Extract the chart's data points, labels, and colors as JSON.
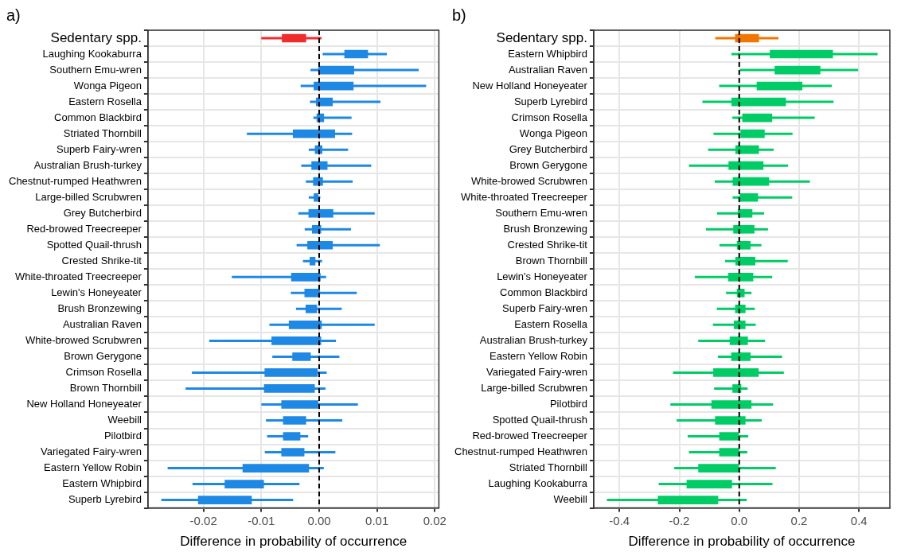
{
  "chart_data": [
    {
      "type": "bar",
      "title": "a)",
      "orientation": "horizontal",
      "xlabel": "Difference in probability of occurrence",
      "grid": true,
      "categories": [
        "Sedentary spp.",
        "Laughing Kookaburra",
        "Southern Emu-wren",
        "Wonga Pigeon",
        "Eastern Rosella",
        "Common Blackbird",
        "Striated Thornbill",
        "Superb Fairy-wren",
        "Australian Brush-turkey",
        "Chestnut-rumped Heathwren",
        "Large-billed Scrubwren",
        "Grey Butcherbird",
        "Red-browed Treecreeper",
        "Spotted Quail-thrush",
        "Crested Shrike-tit",
        "White-throated Treecreeper",
        "Lewin's Honeyeater",
        "Brush Bronzewing",
        "Australian Raven",
        "White-browed Scrubwren",
        "Brown Gerygone",
        "Crimson Rosella",
        "Brown Thornbill",
        "New Holland Honeyeater",
        "Weebill",
        "Pilotbird",
        "Variegated Fairy-wren",
        "Eastern Yellow Robin",
        "Eastern Whipbird",
        "Superb Lyrebird"
      ],
      "base": [
        -0.0064,
        0.0044,
        -0.0001,
        -0.0009,
        -0.0005,
        -0.0004,
        -0.0045,
        -0.0007,
        -0.0013,
        -0.001,
        -0.0009,
        -0.0018,
        -0.0012,
        -0.002,
        -0.0016,
        -0.0048,
        -0.0025,
        -0.0023,
        -0.0052,
        -0.0082,
        -0.0046,
        -0.0094,
        -0.0095,
        -0.0065,
        -0.0062,
        -0.0062,
        -0.0065,
        -0.0132,
        -0.0163,
        -0.0209
      ],
      "values": [
        0.0041,
        0.004,
        0.0061,
        0.0068,
        0.0028,
        0.0012,
        0.0072,
        0.0012,
        0.0027,
        0.0016,
        0.0007,
        0.0042,
        0.0015,
        0.0043,
        0.0009,
        0.005,
        0.0026,
        0.0019,
        0.0056,
        0.0085,
        0.0031,
        0.0091,
        0.0087,
        0.0063,
        0.0039,
        0.0029,
        0.0039,
        0.0114,
        0.0067,
        0.0092
      ],
      "errors": [
        [
          -0.01,
          0.0004
        ],
        [
          0.0006,
          0.0117
        ],
        [
          -0.0015,
          0.0172
        ],
        [
          -0.0032,
          0.0185
        ],
        [
          -0.0016,
          0.0106
        ],
        [
          -0.001,
          0.0056
        ],
        [
          -0.0125,
          0.0057
        ],
        [
          -0.0018,
          0.005
        ],
        [
          -0.0031,
          0.009
        ],
        [
          -0.0023,
          0.0058
        ],
        [
          -0.0018,
          0.0002
        ],
        [
          -0.0036,
          0.0096
        ],
        [
          -0.0025,
          0.0055
        ],
        [
          -0.0039,
          0.0105
        ],
        [
          -0.0028,
          0.0005
        ],
        [
          -0.0151,
          0.0012
        ],
        [
          -0.0049,
          0.0065
        ],
        [
          -0.004,
          0.0039
        ],
        [
          -0.0086,
          0.0096
        ],
        [
          -0.019,
          0.0029
        ],
        [
          -0.0081,
          0.0035
        ],
        [
          -0.022,
          0.0013
        ],
        [
          -0.0231,
          0.0011
        ],
        [
          -0.01,
          0.0067
        ],
        [
          -0.0092,
          0.004
        ],
        [
          -0.009,
          -0.0019
        ],
        [
          -0.0094,
          0.0028
        ],
        [
          -0.0262,
          0.0008
        ],
        [
          -0.0219,
          -0.0034
        ],
        [
          -0.0273,
          -0.0045
        ]
      ],
      "colors": [
        "#f02c2c",
        "#1e88e5",
        "#1e88e5",
        "#1e88e5",
        "#1e88e5",
        "#1e88e5",
        "#1e88e5",
        "#1e88e5",
        "#1e88e5",
        "#1e88e5",
        "#1e88e5",
        "#1e88e5",
        "#1e88e5",
        "#1e88e5",
        "#1e88e5",
        "#1e88e5",
        "#1e88e5",
        "#1e88e5",
        "#1e88e5",
        "#1e88e5",
        "#1e88e5",
        "#1e88e5",
        "#1e88e5",
        "#1e88e5",
        "#1e88e5",
        "#1e88e5",
        "#1e88e5",
        "#1e88e5",
        "#1e88e5",
        "#1e88e5"
      ],
      "xlim": [
        -0.0296,
        0.0207
      ],
      "xticks": [
        {
          "value": -0.02,
          "label": "-0.02"
        },
        {
          "value": -0.01,
          "label": "-0.01"
        },
        {
          "value": 0,
          "label": "0.00"
        },
        {
          "value": 0.01,
          "label": "0.01"
        },
        {
          "value": 0.02,
          "label": "0.02"
        }
      ],
      "ref_lines": [
        {
          "axis": "x",
          "value": 0,
          "color": "#000000",
          "line_style": "dashed"
        }
      ]
    },
    {
      "type": "bar",
      "title": "b)",
      "orientation": "horizontal",
      "xlabel": "Difference in probability of occurrence",
      "grid": true,
      "categories": [
        "Sedentary spp.",
        "Eastern Whipbird",
        "Australian Raven",
        "New Holland Honeyeater",
        "Superb Lyrebird",
        "Crimson Rosella",
        "Wonga Pigeon",
        "Grey Butcherbird",
        "Brown Gerygone",
        "White-browed Scrubwren",
        "White-throated Treecreeper",
        "Southern Emu-wren",
        "Brush Bronzewing",
        "Crested Shrike-tit",
        "Brown Thornbill",
        "Lewin's Honeyeater",
        "Common Blackbird",
        "Superb Fairy-wren",
        "Eastern Rosella",
        "Australian Brush-turkey",
        "Eastern Yellow Robin",
        "Variegated Fairy-wren",
        "Large-billed Scrubwren",
        "Pilotbird",
        "Spotted Quail-thrush",
        "Red-browed Treecreeper",
        "Chestnut-rumped Heathwren",
        "Striated Thornbill",
        "Laughing Kookaburra",
        "Weebill"
      ],
      "base": [
        -0.013,
        0.103,
        0.119,
        0.059,
        -0.025,
        0.011,
        0.005,
        -0.012,
        -0.035,
        -0.021,
        0.0,
        -0.004,
        -0.019,
        -0.007,
        -0.012,
        -0.036,
        -0.007,
        -0.013,
        -0.017,
        -0.031,
        -0.026,
        -0.086,
        -0.022,
        -0.092,
        -0.08,
        -0.066,
        -0.066,
        -0.136,
        -0.175,
        -0.271
      ],
      "values": [
        0.078,
        0.209,
        0.151,
        0.151,
        0.18,
        0.098,
        0.079,
        0.077,
        0.115,
        0.12,
        0.062,
        0.047,
        0.069,
        0.044,
        0.065,
        0.082,
        0.024,
        0.033,
        0.037,
        0.059,
        0.063,
        0.15,
        0.028,
        0.132,
        0.1,
        0.066,
        0.065,
        0.133,
        0.15,
        0.2
      ],
      "errors": [
        [
          -0.08,
          0.131
        ],
        [
          -0.026,
          0.462
        ],
        [
          0.003,
          0.397
        ],
        [
          -0.067,
          0.309
        ],
        [
          -0.123,
          0.315
        ],
        [
          -0.023,
          0.252
        ],
        [
          -0.086,
          0.178
        ],
        [
          -0.104,
          0.115
        ],
        [
          -0.168,
          0.163
        ],
        [
          -0.082,
          0.236
        ],
        [
          -0.022,
          0.177
        ],
        [
          -0.074,
          0.083
        ],
        [
          -0.111,
          0.096
        ],
        [
          -0.066,
          0.074
        ],
        [
          -0.047,
          0.162
        ],
        [
          -0.148,
          0.11
        ],
        [
          -0.044,
          0.041
        ],
        [
          -0.075,
          0.052
        ],
        [
          -0.088,
          0.055
        ],
        [
          -0.137,
          0.086
        ],
        [
          -0.071,
          0.143
        ],
        [
          -0.221,
          0.149
        ],
        [
          -0.084,
          0.028
        ],
        [
          -0.23,
          0.113
        ],
        [
          -0.209,
          0.075
        ],
        [
          -0.172,
          0.03
        ],
        [
          -0.168,
          0.027
        ],
        [
          -0.217,
          0.122
        ],
        [
          -0.269,
          0.111
        ],
        [
          -0.442,
          0.025
        ]
      ],
      "colors": [
        "#ef7600",
        "#00cc66",
        "#00cc66",
        "#00cc66",
        "#00cc66",
        "#00cc66",
        "#00cc66",
        "#00cc66",
        "#00cc66",
        "#00cc66",
        "#00cc66",
        "#00cc66",
        "#00cc66",
        "#00cc66",
        "#00cc66",
        "#00cc66",
        "#00cc66",
        "#00cc66",
        "#00cc66",
        "#00cc66",
        "#00cc66",
        "#00cc66",
        "#00cc66",
        "#00cc66",
        "#00cc66",
        "#00cc66",
        "#00cc66",
        "#00cc66",
        "#00cc66",
        "#00cc66"
      ],
      "xlim": [
        -0.486,
        0.503
      ],
      "xticks": [
        {
          "value": -0.4,
          "label": "-0.4"
        },
        {
          "value": -0.2,
          "label": "-0.2"
        },
        {
          "value": 0,
          "label": "0.0"
        },
        {
          "value": 0.2,
          "label": "0.2"
        },
        {
          "value": 0.4,
          "label": "0.4"
        }
      ],
      "ref_lines": [
        {
          "axis": "x",
          "value": 0,
          "color": "#000000",
          "line_style": "dashed"
        }
      ]
    }
  ]
}
